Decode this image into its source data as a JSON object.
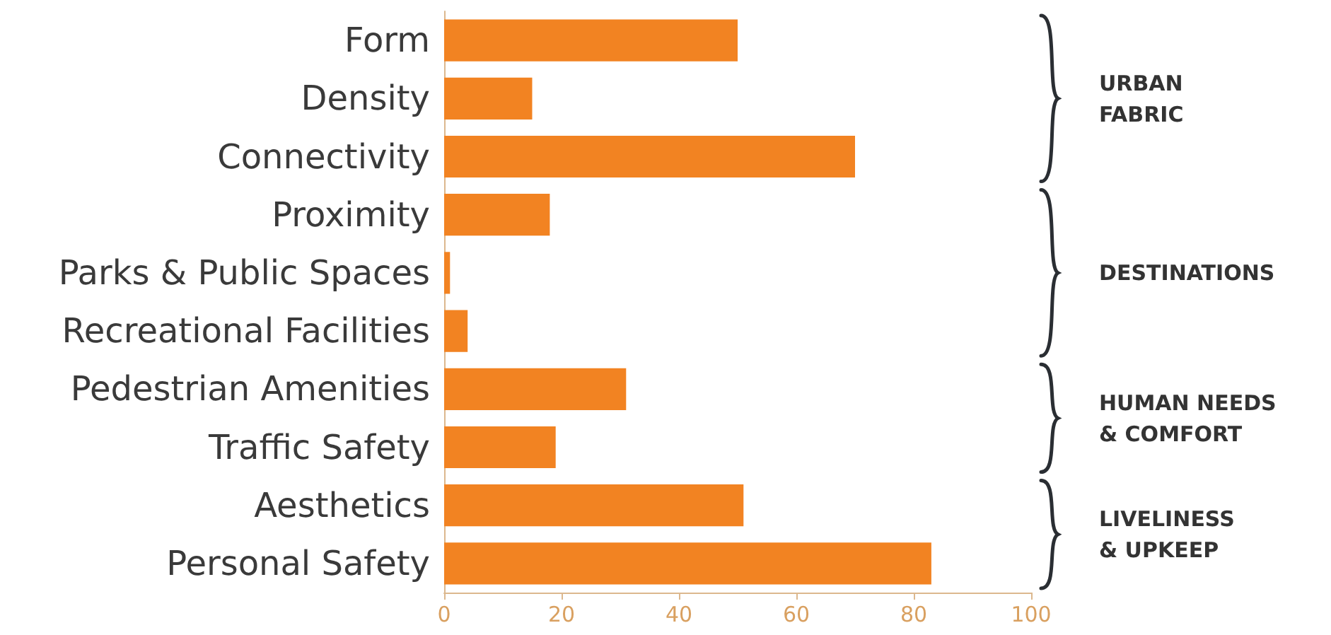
{
  "chart_data": {
    "type": "bar",
    "orientation": "horizontal",
    "categories": [
      "Form",
      "Density",
      "Connectivity",
      "Proximity",
      "Parks & Public Spaces",
      "Recreational Facilities",
      "Pedestrian Amenities",
      "Traffic Safety",
      "Aesthetics",
      "Personal Safety"
    ],
    "values": [
      50,
      15,
      70,
      18,
      1,
      4,
      31,
      19,
      51,
      83
    ],
    "color": "#f28322",
    "xlim": [
      0,
      100
    ],
    "xticks": [
      0,
      20,
      40,
      60,
      80,
      100
    ],
    "grid": false,
    "annotations": [
      "URBAN\nFABRIC",
      "DESTINATIONS",
      "HUMAN NEEDS\n& COMFORT",
      "LIVELINESS\n& UPKEEP"
    ]
  }
}
